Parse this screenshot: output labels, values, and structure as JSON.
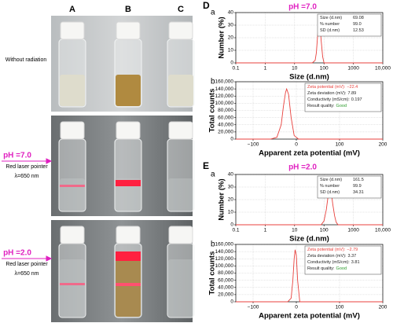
{
  "photo": {
    "columns": [
      "A",
      "B",
      "C"
    ],
    "rows": [
      {
        "label": "Without radiation"
      },
      {
        "ph": "pH =7.0",
        "lines": [
          "Red laser pointer",
          "λ=650 nm"
        ]
      },
      {
        "ph": "pH =2.0",
        "lines": [
          "Red laser pointer",
          "λ=650 nm"
        ]
      }
    ]
  },
  "groups": [
    {
      "letter": "D",
      "title": "pH =7.0"
    },
    {
      "letter": "E",
      "title": "pH =2.0"
    }
  ],
  "chart_data": [
    {
      "type": "line",
      "panel": "a",
      "ylabel": "Number (%)",
      "xlabel": "Size (d.nm)",
      "log_x": true,
      "grid": true,
      "color": "#e8403c",
      "xlim": [
        0.1,
        10000
      ],
      "xticks": [
        0.1,
        1,
        10,
        100,
        1000,
        {
          "value": 10000,
          "label": "10,000"
        }
      ],
      "ylim": [
        0,
        40
      ],
      "yticks": [
        0,
        10,
        20,
        30,
        40
      ],
      "x": [
        0.1,
        40,
        50,
        55,
        60,
        65,
        69,
        75,
        80,
        90,
        100,
        10000
      ],
      "values": [
        0,
        0,
        2,
        8,
        20,
        29,
        31,
        27,
        18,
        5,
        0,
        0
      ],
      "info": [
        [
          "Size (d.nm)",
          "69.08"
        ],
        [
          "% number",
          "99.0"
        ],
        [
          "SD (d.nm)",
          "12.53"
        ]
      ]
    },
    {
      "type": "line",
      "panel": "b",
      "ylabel": "Total counts",
      "xlabel": "Apparent zeta potential (mV)",
      "log_x": false,
      "grid": true,
      "color": "#e8403c",
      "xlim": [
        -140,
        200
      ],
      "xticks": [
        {
          "value": -100,
          "label": "−100"
        },
        0,
        100,
        200
      ],
      "ylim": [
        0,
        160000
      ],
      "yticks": [
        0,
        {
          "value": 20000,
          "label": "20,000"
        },
        {
          "value": 40000,
          "label": "40,000"
        },
        {
          "value": 60000,
          "label": "60,000"
        },
        {
          "value": 80000,
          "label": "80,000"
        },
        {
          "value": 100000,
          "label": "100,000"
        },
        {
          "value": 120000,
          "label": "120,000"
        },
        {
          "value": 140000,
          "label": "140,000"
        },
        {
          "value": 160000,
          "label": "160,000"
        }
      ],
      "x": [
        -140,
        -60,
        -45,
        -35,
        -30,
        -25,
        -22.4,
        -18,
        -12,
        -5,
        5,
        200
      ],
      "values": [
        0,
        0,
        5000,
        40000,
        90000,
        130000,
        140000,
        125000,
        60000,
        10000,
        0,
        0
      ],
      "info": [
        [
          "Zeta potential (mV):",
          "−22.4"
        ],
        [
          "Zeta deviation (mV):",
          "7.89"
        ],
        [
          "Conductivity (mS/cm):",
          "0.197"
        ],
        [
          "Result quality:",
          "Good"
        ]
      ]
    },
    {
      "type": "line",
      "panel": "a",
      "ylabel": "Number (%)",
      "xlabel": "Size (d.nm)",
      "log_x": true,
      "grid": true,
      "color": "#e8403c",
      "xlim": [
        0.1,
        10000
      ],
      "xticks": [
        0.1,
        1,
        10,
        100,
        1000,
        {
          "value": 10000,
          "label": "10,000"
        }
      ],
      "ylim": [
        0,
        40
      ],
      "yticks": [
        0,
        10,
        20,
        30,
        40
      ],
      "x": [
        0.1,
        80,
        100,
        120,
        140,
        161.5,
        180,
        200,
        230,
        260,
        300,
        10000
      ],
      "values": [
        0,
        0,
        3,
        12,
        24,
        27,
        24,
        16,
        7,
        2,
        0,
        0
      ],
      "info": [
        [
          "Size (d.nm)",
          "161.5"
        ],
        [
          "% number",
          "99.9"
        ],
        [
          "SD (d.nm)",
          "34.31"
        ]
      ]
    },
    {
      "type": "line",
      "panel": "b",
      "ylabel": "Total counts",
      "xlabel": "Apparent zeta potential (mV)",
      "log_x": false,
      "grid": true,
      "color": "#e8403c",
      "xlim": [
        -140,
        200
      ],
      "xticks": [
        {
          "value": -100,
          "label": "−100"
        },
        0,
        100,
        200
      ],
      "ylim": [
        0,
        160000
      ],
      "yticks": [
        0,
        {
          "value": 20000,
          "label": "20,000"
        },
        {
          "value": 40000,
          "label": "40,000"
        },
        {
          "value": 60000,
          "label": "60,000"
        },
        {
          "value": 80000,
          "label": "80,000"
        },
        {
          "value": 100000,
          "label": "100,000"
        },
        {
          "value": 120000,
          "label": "120,000"
        },
        {
          "value": 140000,
          "label": "140,000"
        },
        {
          "value": 160000,
          "label": "160,000"
        }
      ],
      "x": [
        -140,
        -20,
        -12,
        -8,
        -5,
        -2.79,
        0,
        3,
        8,
        200
      ],
      "values": [
        0,
        0,
        10000,
        60000,
        120000,
        145000,
        130000,
        60000,
        0,
        0
      ],
      "info": [
        [
          "Zeta potential (mV):",
          "−2.79"
        ],
        [
          "Zeta deviation (mV):",
          "3.37"
        ],
        [
          "Conductivity (mS/cm):",
          "3.81"
        ],
        [
          "Result quality:",
          "Good"
        ]
      ]
    }
  ]
}
